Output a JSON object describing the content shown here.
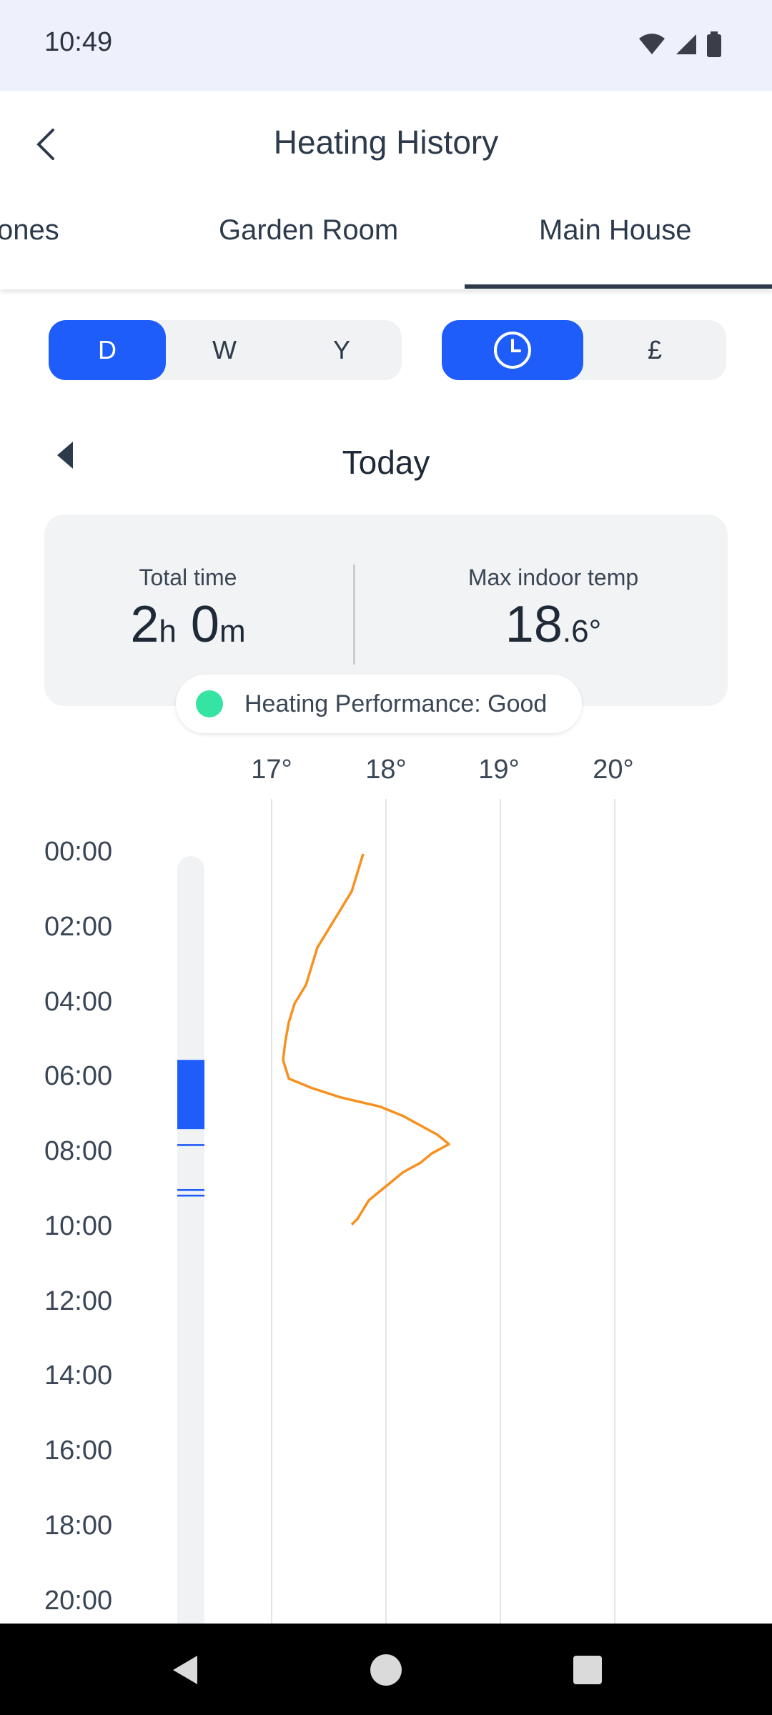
{
  "status_bar": {
    "time": "10:49"
  },
  "header": {
    "title": "Heating History"
  },
  "tabs": [
    {
      "label": "ones"
    },
    {
      "label": "Garden Room"
    },
    {
      "label": "Main House",
      "selected": true
    }
  ],
  "period_toggle": {
    "options": [
      "D",
      "W",
      "Y"
    ],
    "selected": "D"
  },
  "mode_toggle": {
    "options": [
      "clock-icon",
      "£"
    ],
    "selected": "clock-icon"
  },
  "date_nav": {
    "label": "Today"
  },
  "summary": {
    "total_time": {
      "label": "Total time",
      "hours": "2",
      "hours_unit": "h",
      "minutes": "0",
      "minutes_unit": "m"
    },
    "max_temp": {
      "label": "Max indoor temp",
      "whole": "18",
      "decimal": ".6",
      "unit": "°"
    }
  },
  "performance": {
    "text": "Heating Performance: Good",
    "status_color": "#35e3a2"
  },
  "colors": {
    "accent": "#1f5dfa",
    "temperature_line": "#f7901e"
  },
  "chart_data": {
    "type": "line",
    "orientation": "vertical-time",
    "x_ticks": [
      "17°",
      "18°",
      "19°",
      "20°"
    ],
    "xlim": [
      16.5,
      20.5
    ],
    "y_ticks": [
      "00:00",
      "02:00",
      "04:00",
      "06:00",
      "08:00",
      "10:00",
      "12:00",
      "14:00",
      "16:00",
      "18:00",
      "20:00"
    ],
    "series": [
      {
        "time_hours": [
          0,
          0.5,
          1,
          1.5,
          2,
          2.5,
          3,
          3.5,
          4,
          4.5,
          5,
          5.5,
          6,
          6.25,
          6.5,
          6.75,
          7,
          7.25,
          7.5,
          7.75,
          8,
          8.25,
          8.5,
          8.75,
          9,
          9.25,
          9.5,
          9.75,
          9.9
        ],
        "temp_c": [
          17.8,
          17.75,
          17.7,
          17.6,
          17.5,
          17.4,
          17.35,
          17.3,
          17.2,
          17.15,
          17.12,
          17.1,
          17.15,
          17.35,
          17.6,
          17.95,
          18.15,
          18.3,
          18.45,
          18.55,
          18.4,
          18.3,
          18.15,
          18.05,
          17.95,
          17.85,
          17.8,
          17.75,
          17.7
        ]
      }
    ],
    "heating_periods": [
      {
        "start_hours": 5.5,
        "end_hours": 7.35
      },
      {
        "start_hours": 7.75,
        "end_hours": 7.8
      },
      {
        "start_hours": 8.95,
        "end_hours": 9.0
      },
      {
        "start_hours": 9.1,
        "end_hours": 9.15
      }
    ],
    "grid": true
  }
}
